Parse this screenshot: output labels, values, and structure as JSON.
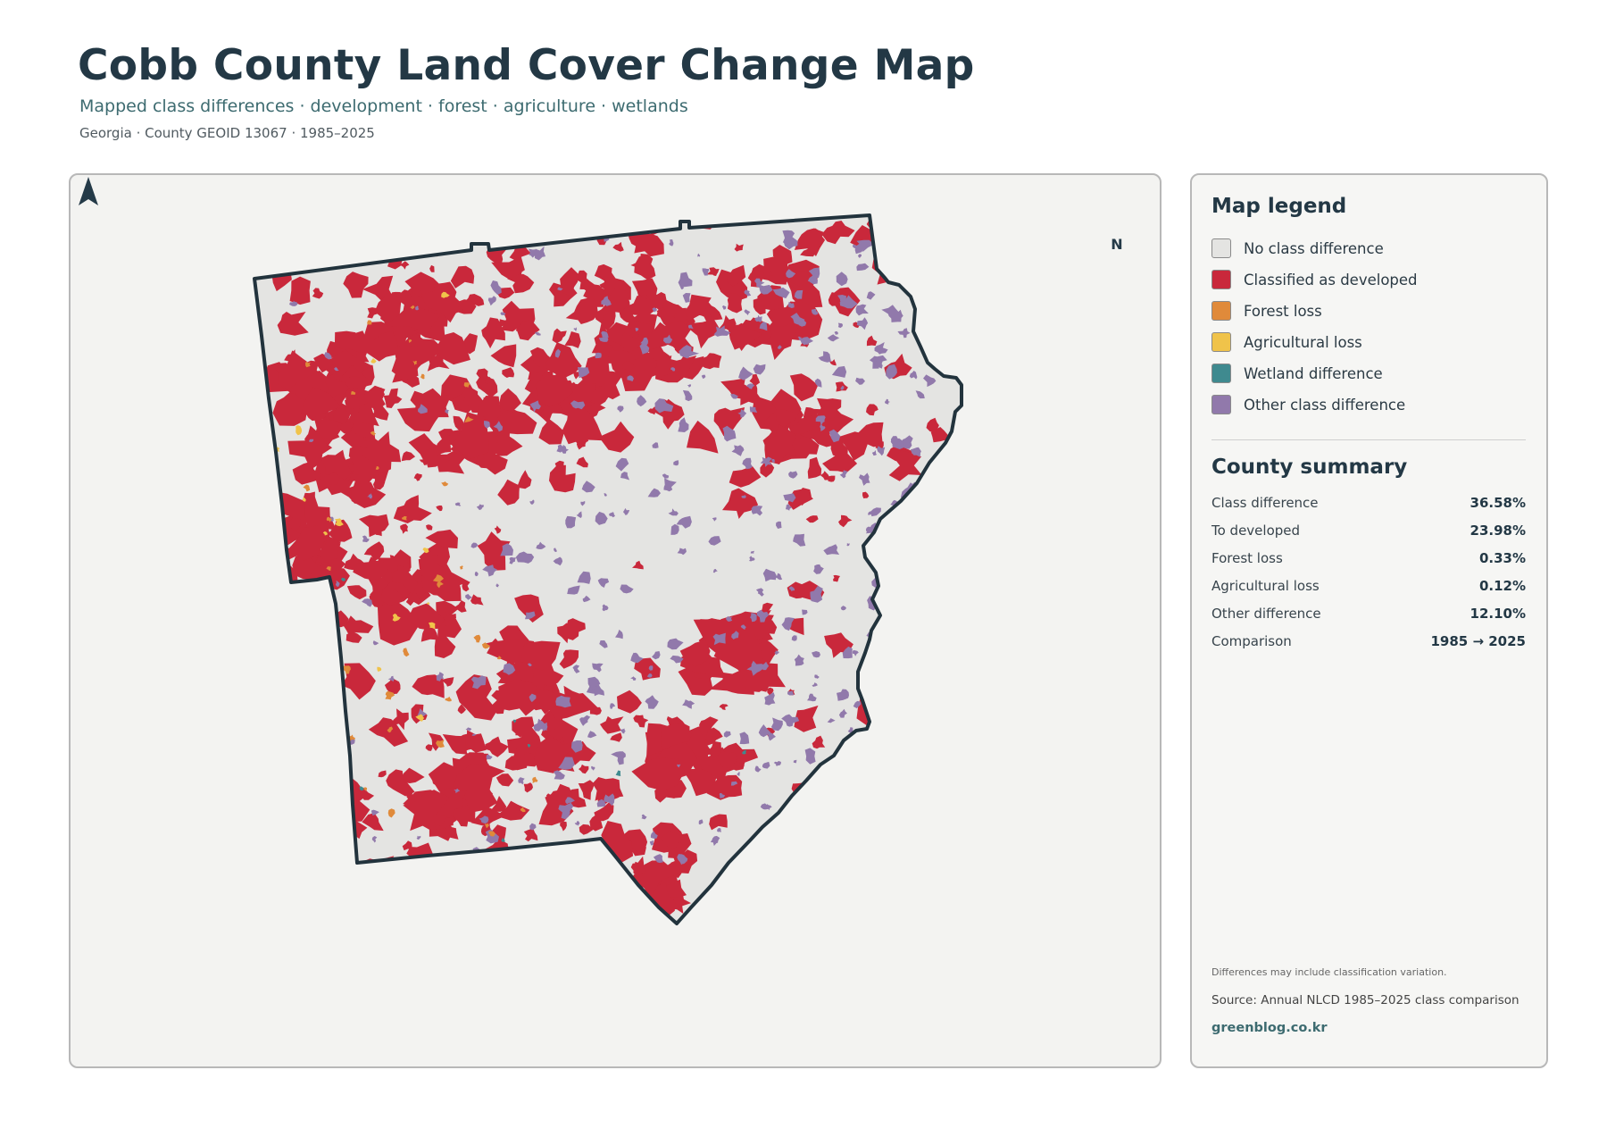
{
  "header": {
    "title": "Cobb County Land Cover Change Map",
    "subtitle": "Mapped class differences · development · forest · agriculture · wetlands",
    "meta": "Georgia · County GEOID 13067 · 1985–2025"
  },
  "map": {
    "north_label": "N",
    "base_color": "#e4e4e2",
    "outline_color": "#22333d"
  },
  "legend": {
    "title": "Map legend",
    "items": [
      {
        "label": "No class difference",
        "color": "#e4e4e2"
      },
      {
        "label": "Classified as developed",
        "color": "#c9283b"
      },
      {
        "label": "Forest loss",
        "color": "#e08a3a"
      },
      {
        "label": "Agricultural loss",
        "color": "#f0c34a"
      },
      {
        "label": "Wetland difference",
        "color": "#3f8a8f"
      },
      {
        "label": "Other class difference",
        "color": "#9179ab"
      }
    ]
  },
  "summary": {
    "title": "County summary",
    "rows": [
      {
        "label": "Class difference",
        "value": "36.58%"
      },
      {
        "label": "To developed",
        "value": "23.98%"
      },
      {
        "label": "Forest loss",
        "value": "0.33%"
      },
      {
        "label": "Agricultural loss",
        "value": "0.12%"
      },
      {
        "label": "Other difference",
        "value": "12.10%"
      },
      {
        "label": "Comparison",
        "value": "1985 → 2025"
      }
    ]
  },
  "footer": {
    "note": "Differences may include classification variation.",
    "source": "Source: Annual NLCD 1985–2025 class comparison",
    "site": "greenblog.co.kr"
  }
}
